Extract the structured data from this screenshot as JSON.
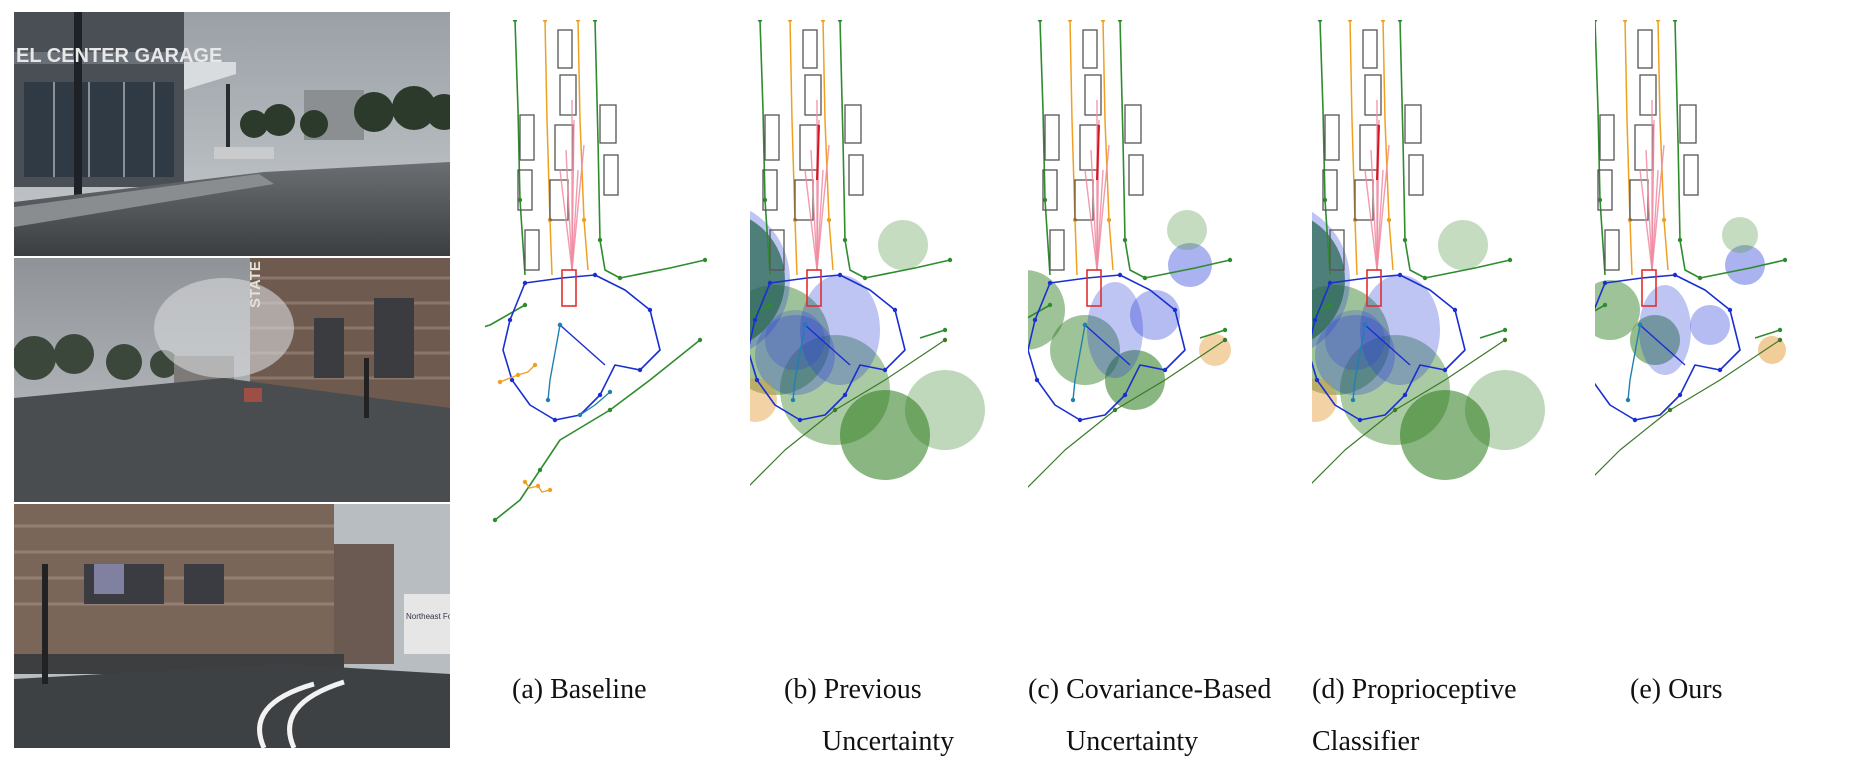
{
  "photos": [
    {
      "sign": "EL CENTER GARAGE"
    },
    {
      "sign": "STATE STREET"
    },
    {
      "sign": "Northeast For..."
    }
  ],
  "panels": [
    {
      "id": "a",
      "line1": "(a) Baseline",
      "line2": "",
      "variant": "baseline"
    },
    {
      "id": "b",
      "line1": "(b) Previous",
      "line2": "Uncertainty",
      "variant": "large"
    },
    {
      "id": "c",
      "line1": "(c) Covariance-Based",
      "line2": "Uncertainty",
      "variant": "medium"
    },
    {
      "id": "d",
      "line1": "(d) Proprioceptive",
      "line2": "Classifier",
      "variant": "large"
    },
    {
      "id": "e",
      "line1": "(e) Ours",
      "line2": "",
      "variant": "small"
    }
  ],
  "colors": {
    "lane_divider": "#f0a020",
    "road_boundary": "#2e8b2e",
    "ped_crossing": "#1a2fd0",
    "vehicle_box": "#555555",
    "ego_box": "#e03030",
    "prediction": "#f08aa0"
  }
}
